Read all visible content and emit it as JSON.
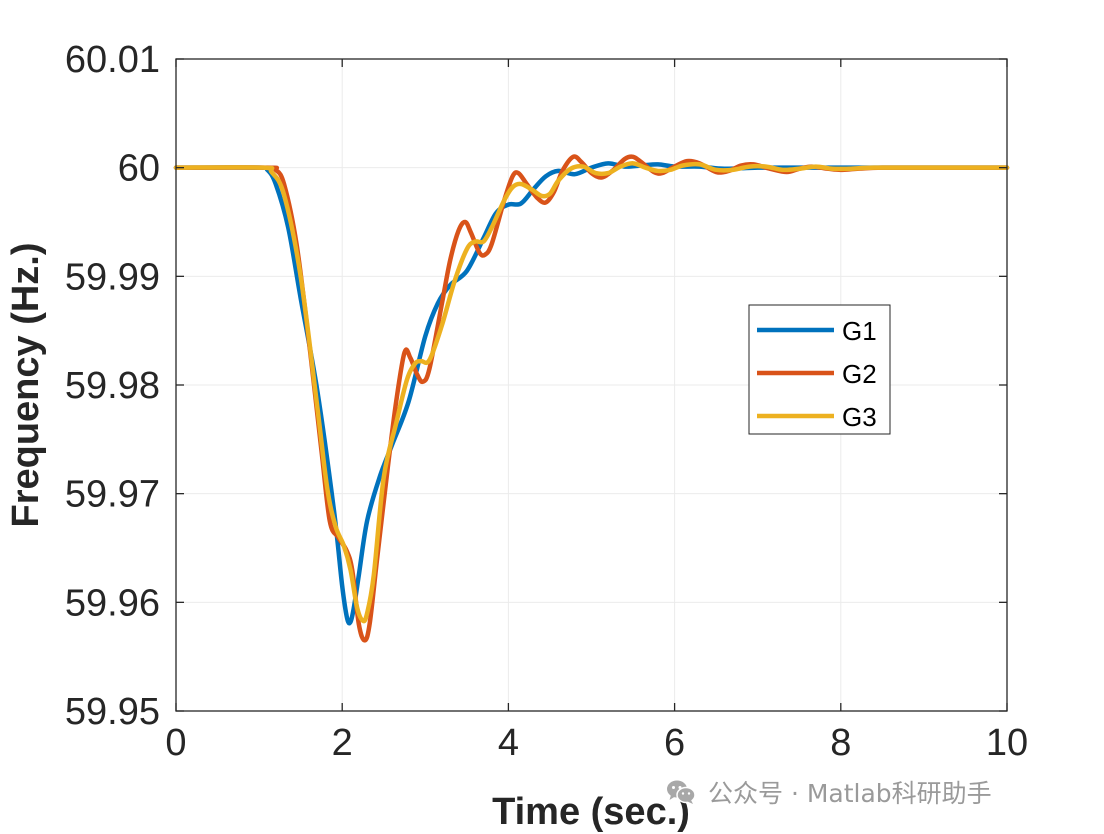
{
  "chart_data": {
    "type": "line",
    "xlabel": "Time (sec.)",
    "ylabel": "Frequency (Hz.)",
    "xlim": [
      0,
      10
    ],
    "ylim": [
      59.95,
      60.01
    ],
    "xticks": [
      "0",
      "2",
      "4",
      "6",
      "8",
      "10"
    ],
    "yticks": [
      "59.95",
      "59.96",
      "59.97",
      "59.98",
      "59.99",
      "60",
      "60.01"
    ],
    "grid": true,
    "legend_position": "right-center",
    "series": [
      {
        "name": "G1",
        "color": "#0072BD",
        "points": [
          [
            0,
            60.0
          ],
          [
            1.0,
            60.0
          ],
          [
            1.1,
            59.9998
          ],
          [
            1.2,
            59.9985
          ],
          [
            1.35,
            59.9945
          ],
          [
            1.5,
            59.988
          ],
          [
            1.7,
            59.9795
          ],
          [
            1.9,
            59.9685
          ],
          [
            2.0,
            59.9615
          ],
          [
            2.06,
            59.9585
          ],
          [
            2.1,
            59.9582
          ],
          [
            2.14,
            59.9595
          ],
          [
            2.2,
            59.9625
          ],
          [
            2.3,
            59.9675
          ],
          [
            2.45,
            59.9715
          ],
          [
            2.6,
            59.9745
          ],
          [
            2.8,
            59.9785
          ],
          [
            3.0,
            59.9845
          ],
          [
            3.15,
            59.9875
          ],
          [
            3.3,
            59.9892
          ],
          [
            3.5,
            59.9905
          ],
          [
            3.7,
            59.9935
          ],
          [
            3.85,
            59.9958
          ],
          [
            4.0,
            59.9966
          ],
          [
            4.15,
            59.9967
          ],
          [
            4.3,
            59.998
          ],
          [
            4.45,
            59.9992
          ],
          [
            4.6,
            59.9997
          ],
          [
            4.8,
            59.9994
          ],
          [
            5.0,
            60.0
          ],
          [
            5.2,
            60.0004
          ],
          [
            5.4,
            60.0001
          ],
          [
            5.6,
            60.0002
          ],
          [
            5.8,
            60.0003
          ],
          [
            6.0,
            60.0001
          ],
          [
            6.3,
            60.0001
          ],
          [
            6.6,
            59.9999
          ],
          [
            7.0,
            60.0
          ],
          [
            7.5,
            60.0
          ],
          [
            8.0,
            60.0
          ],
          [
            9.0,
            60.0
          ],
          [
            10.0,
            60.0
          ]
        ]
      },
      {
        "name": "G2",
        "color": "#D95319",
        "points": [
          [
            0,
            60.0
          ],
          [
            1.1,
            60.0
          ],
          [
            1.2,
            59.9998
          ],
          [
            1.3,
            59.9985
          ],
          [
            1.45,
            59.993
          ],
          [
            1.6,
            59.984
          ],
          [
            1.75,
            59.974
          ],
          [
            1.85,
            59.9675
          ],
          [
            1.95,
            59.966
          ],
          [
            2.05,
            59.9648
          ],
          [
            2.12,
            59.963
          ],
          [
            2.2,
            59.958
          ],
          [
            2.27,
            59.9565
          ],
          [
            2.33,
            59.958
          ],
          [
            2.42,
            59.964
          ],
          [
            2.55,
            59.9725
          ],
          [
            2.65,
            59.9785
          ],
          [
            2.75,
            59.983
          ],
          [
            2.82,
            59.9825
          ],
          [
            2.9,
            59.981
          ],
          [
            2.97,
            59.9803
          ],
          [
            3.05,
            59.9815
          ],
          [
            3.2,
            59.9875
          ],
          [
            3.3,
            59.9915
          ],
          [
            3.4,
            59.9942
          ],
          [
            3.48,
            59.995
          ],
          [
            3.55,
            59.994
          ],
          [
            3.65,
            59.9922
          ],
          [
            3.72,
            59.992
          ],
          [
            3.8,
            59.993
          ],
          [
            3.95,
            59.997
          ],
          [
            4.05,
            59.9992
          ],
          [
            4.12,
            59.9995
          ],
          [
            4.22,
            59.9985
          ],
          [
            4.35,
            59.9972
          ],
          [
            4.45,
            59.9968
          ],
          [
            4.55,
            59.9978
          ],
          [
            4.65,
            59.9997
          ],
          [
            4.78,
            60.001
          ],
          [
            4.88,
            60.0005
          ],
          [
            5.0,
            59.9995
          ],
          [
            5.12,
            59.9991
          ],
          [
            5.25,
            59.9997
          ],
          [
            5.4,
            60.0008
          ],
          [
            5.5,
            60.001
          ],
          [
            5.6,
            60.0005
          ],
          [
            5.75,
            59.9996
          ],
          [
            5.85,
            59.9995
          ],
          [
            6.0,
            60.0001
          ],
          [
            6.15,
            60.0006
          ],
          [
            6.3,
            60.0004
          ],
          [
            6.5,
            59.9996
          ],
          [
            6.65,
            59.9997
          ],
          [
            6.8,
            60.0002
          ],
          [
            6.95,
            60.0003
          ],
          [
            7.15,
            59.9999
          ],
          [
            7.35,
            59.9996
          ],
          [
            7.5,
            59.9999
          ],
          [
            7.65,
            60.0001
          ],
          [
            7.85,
            59.9999
          ],
          [
            8.0,
            59.9998
          ],
          [
            8.2,
            59.9999
          ],
          [
            8.5,
            60.0
          ],
          [
            9.0,
            60.0
          ],
          [
            9.5,
            60.0
          ],
          [
            10.0,
            60.0
          ]
        ]
      },
      {
        "name": "G3",
        "color": "#EDB120",
        "points": [
          [
            0,
            60.0
          ],
          [
            1.05,
            60.0
          ],
          [
            1.15,
            59.9996
          ],
          [
            1.3,
            59.9975
          ],
          [
            1.5,
            59.99
          ],
          [
            1.7,
            59.978
          ],
          [
            1.82,
            59.9705
          ],
          [
            1.92,
            59.967
          ],
          [
            2.02,
            59.9652
          ],
          [
            2.1,
            59.963
          ],
          [
            2.18,
            59.9595
          ],
          [
            2.25,
            59.9583
          ],
          [
            2.3,
            59.959
          ],
          [
            2.38,
            59.9625
          ],
          [
            2.5,
            59.9715
          ],
          [
            2.65,
            59.9765
          ],
          [
            2.78,
            59.9805
          ],
          [
            2.88,
            59.982
          ],
          [
            2.95,
            59.9822
          ],
          [
            3.05,
            59.9823
          ],
          [
            3.2,
            59.9855
          ],
          [
            3.35,
            59.9895
          ],
          [
            3.5,
            59.9925
          ],
          [
            3.6,
            59.9932
          ],
          [
            3.7,
            59.9932
          ],
          [
            3.8,
            59.9945
          ],
          [
            3.95,
            59.997
          ],
          [
            4.05,
            59.9982
          ],
          [
            4.15,
            59.9985
          ],
          [
            4.28,
            59.998
          ],
          [
            4.4,
            59.9974
          ],
          [
            4.5,
            59.9976
          ],
          [
            4.6,
            59.9988
          ],
          [
            4.75,
            59.9999
          ],
          [
            4.9,
            60.0001
          ],
          [
            5.05,
            59.9995
          ],
          [
            5.2,
            59.9995
          ],
          [
            5.35,
            60.0001
          ],
          [
            5.5,
            60.0004
          ],
          [
            5.65,
            60.0
          ],
          [
            5.8,
            59.9997
          ],
          [
            5.95,
            59.9998
          ],
          [
            6.1,
            60.0002
          ],
          [
            6.3,
            60.0003
          ],
          [
            6.5,
            59.9998
          ],
          [
            6.7,
            59.9998
          ],
          [
            6.9,
            60.0001
          ],
          [
            7.1,
            60.0001
          ],
          [
            7.3,
            59.9998
          ],
          [
            7.5,
            59.9999
          ],
          [
            7.7,
            60.0001
          ],
          [
            7.9,
            59.9999
          ],
          [
            8.1,
            59.9999
          ],
          [
            8.4,
            60.0
          ],
          [
            9.0,
            60.0
          ],
          [
            10.0,
            60.0
          ]
        ]
      }
    ]
  },
  "watermark": {
    "icon": "wechat-icon",
    "text": "公众号 · Matlab科研助手"
  }
}
